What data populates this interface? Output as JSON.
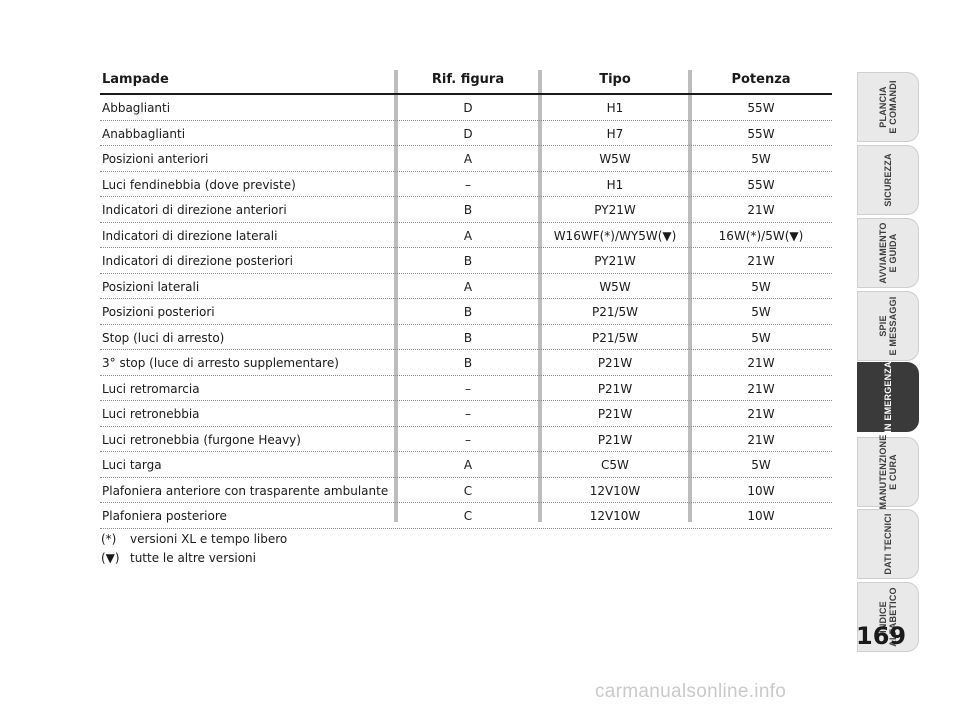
{
  "table": {
    "headers": {
      "lampade": "Lampade",
      "rif": "Rif. figura",
      "tipo": "Tipo",
      "potenza": "Potenza"
    },
    "rows": [
      {
        "lampade": "Abbaglianti",
        "rif": "D",
        "tipo": "H1",
        "potenza": "55W"
      },
      {
        "lampade": "Anabbaglianti",
        "rif": "D",
        "tipo": "H7",
        "potenza": "55W"
      },
      {
        "lampade": "Posizioni anteriori",
        "rif": "A",
        "tipo": "W5W",
        "potenza": "5W"
      },
      {
        "lampade": "Luci fendinebbia (dove previste)",
        "rif": "–",
        "tipo": "H1",
        "potenza": "55W"
      },
      {
        "lampade": "Indicatori di direzione anteriori",
        "rif": "B",
        "tipo": "PY21W",
        "potenza": "21W"
      },
      {
        "lampade": "Indicatori di direzione laterali",
        "rif": "A",
        "tipo": "W16WF(*)/WY5W(▼)",
        "potenza": "16W(*)/5W(▼)"
      },
      {
        "lampade": "Indicatori di direzione posteriori",
        "rif": "B",
        "tipo": "PY21W",
        "potenza": "21W"
      },
      {
        "lampade": "Posizioni laterali",
        "rif": "A",
        "tipo": "W5W",
        "potenza": "5W"
      },
      {
        "lampade": "Posizioni posteriori",
        "rif": "B",
        "tipo": "P21/5W",
        "potenza": "5W"
      },
      {
        "lampade": "Stop (luci di arresto)",
        "rif": "B",
        "tipo": "P21/5W",
        "potenza": "5W"
      },
      {
        "lampade": "3° stop (luce di arresto supplementare)",
        "rif": "B",
        "tipo": "P21W",
        "potenza": "21W"
      },
      {
        "lampade": "Luci retromarcia",
        "rif": "–",
        "tipo": "P21W",
        "potenza": "21W"
      },
      {
        "lampade": "Luci retronebbia",
        "rif": "–",
        "tipo": "P21W",
        "potenza": "21W"
      },
      {
        "lampade": "Luci retronebbia (furgone Heavy)",
        "rif": "–",
        "tipo": "P21W",
        "potenza": "21W"
      },
      {
        "lampade": "Luci targa",
        "rif": "A",
        "tipo": "C5W",
        "potenza": "5W"
      },
      {
        "lampade": "Plafoniera anteriore con trasparente ambulante",
        "rif": "C",
        "tipo": "12V10W",
        "potenza": "10W"
      },
      {
        "lampade": "Plafoniera posteriore",
        "rif": "C",
        "tipo": "12V10W",
        "potenza": "10W"
      }
    ]
  },
  "notes": [
    {
      "symbol": "(*)",
      "text": "versioni XL e tempo libero"
    },
    {
      "symbol": "(▼)",
      "text": "tutte le altre versioni"
    }
  ],
  "tabs": [
    {
      "label": "PLANCIA\nE COMANDI",
      "active": false
    },
    {
      "label": "SICUREZZA",
      "active": false
    },
    {
      "label": "AVVIAMENTO\nE GUIDA",
      "active": false
    },
    {
      "label": "SPIE\nE MESSAGGI",
      "active": false
    },
    {
      "label": "IN EMERGENZA",
      "active": true
    },
    {
      "label": "MANUTENZIONE\nE CURA",
      "active": false
    },
    {
      "label": "DATI TECNICI",
      "active": false
    },
    {
      "label": "INDICE\nALFABETICO",
      "active": false
    }
  ],
  "page_number": "169",
  "watermark": "carmanualsonline.info"
}
